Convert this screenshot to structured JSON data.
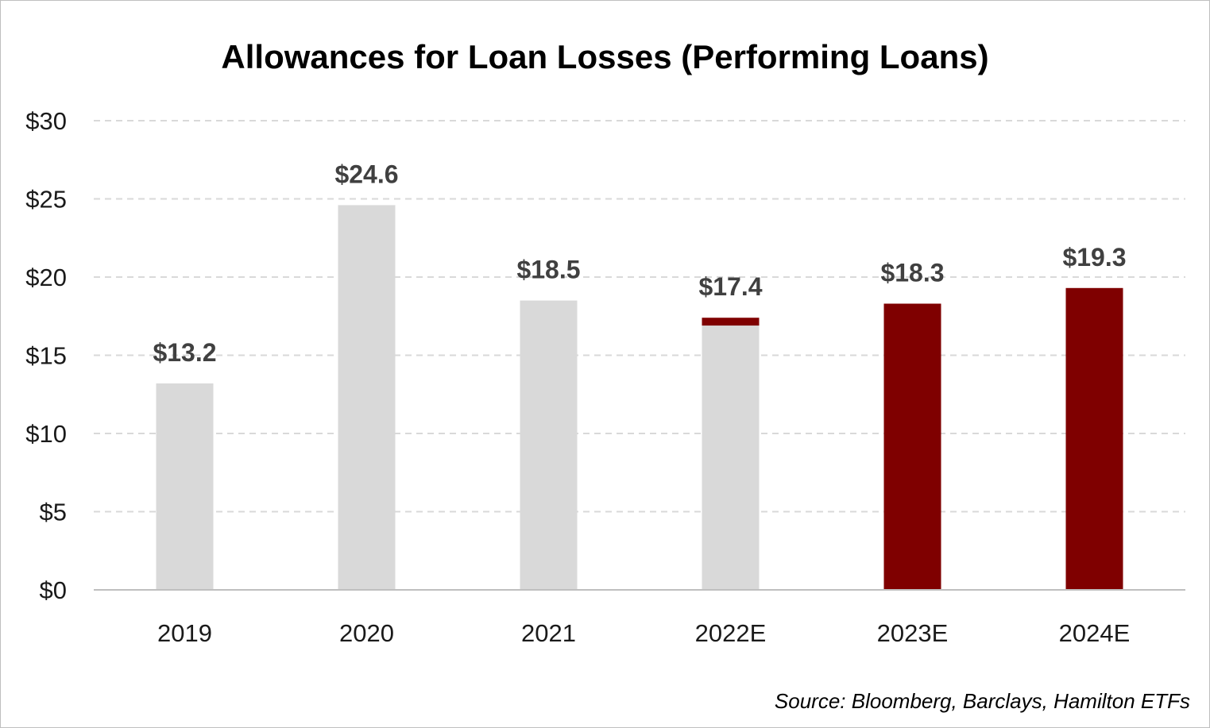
{
  "chart_data": {
    "type": "bar",
    "title": "Allowances for Loan Losses (Performing Loans)",
    "xlabel": "",
    "ylabel": "",
    "categories": [
      "2019",
      "2020",
      "2021",
      "2022E",
      "2023E",
      "2024E"
    ],
    "values": [
      13.2,
      24.6,
      18.5,
      17.4,
      18.3,
      19.3
    ],
    "value_labels": [
      "$13.2",
      "$24.6",
      "$18.5",
      "$17.4",
      "$18.3",
      "$19.3"
    ],
    "stack_split": [
      {
        "category": "2019",
        "grey": 13.2,
        "red": 0
      },
      {
        "category": "2020",
        "grey": 24.6,
        "red": 0
      },
      {
        "category": "2021",
        "grey": 18.5,
        "red": 0
      },
      {
        "category": "2022E",
        "grey": 16.9,
        "red": 0.5
      },
      {
        "category": "2023E",
        "grey": 0,
        "red": 18.3
      },
      {
        "category": "2024E",
        "grey": 0,
        "red": 19.3
      }
    ],
    "ylim": [
      0,
      30
    ],
    "yticks": [
      0,
      5,
      10,
      15,
      20,
      25,
      30
    ],
    "ytick_labels": [
      "$0",
      "$5",
      "$10",
      "$15",
      "$20",
      "$25",
      "$30"
    ],
    "grid": true,
    "legend": "none",
    "colors": {
      "actual": "#d9d9d9",
      "estimate": "#7f0000",
      "grid": "#d9d9d9",
      "axis": "#bfbfbf",
      "label": "#404040"
    }
  },
  "source": "Source: Bloomberg, Barclays, Hamilton ETFs"
}
